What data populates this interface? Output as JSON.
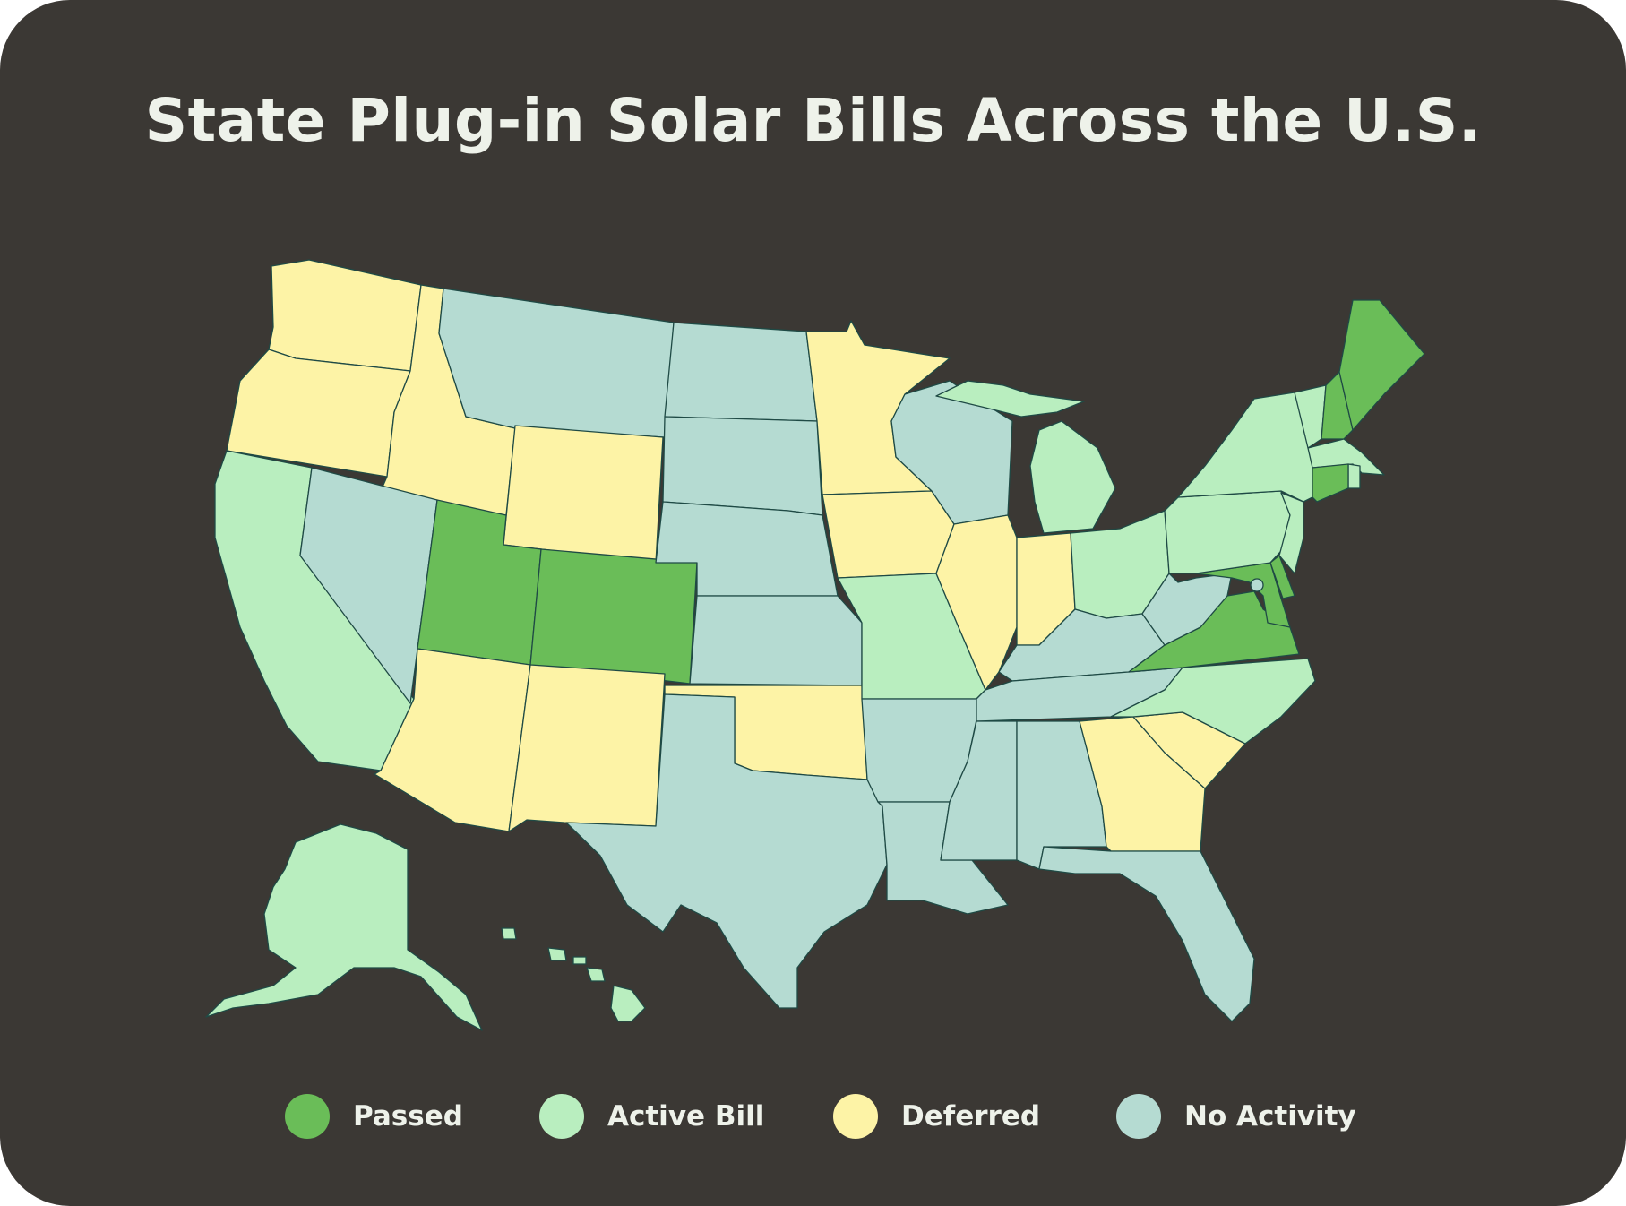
{
  "title": "State Plug-in Solar Bills Across the U.S.",
  "colors": {
    "background": "#3b3834",
    "passed": "#6abd58",
    "active": "#b9eebf",
    "deferred": "#fdf3a6",
    "none": "#b5dbd2",
    "border": "#1f4a45",
    "text": "#eef2ea"
  },
  "legend": [
    {
      "key": "passed",
      "label": "Passed",
      "color": "#6abd58"
    },
    {
      "key": "active",
      "label": "Active Bill",
      "color": "#b9eebf"
    },
    {
      "key": "deferred",
      "label": "Deferred",
      "color": "#fdf3a6"
    },
    {
      "key": "none",
      "label": "No Activity",
      "color": "#b5dbd2"
    }
  ],
  "states": {
    "passed": [
      "UT",
      "CO",
      "VA",
      "MD",
      "DE",
      "CT",
      "NH",
      "ME"
    ],
    "active": [
      "CA",
      "AK",
      "HI",
      "MO",
      "MI",
      "OH",
      "PA",
      "NY",
      "NJ",
      "NC",
      "VT",
      "MA",
      "RI"
    ],
    "deferred": [
      "WA",
      "OR",
      "ID",
      "WY",
      "AZ",
      "NM",
      "MN",
      "IA",
      "IL",
      "IN",
      "OK",
      "GA",
      "SC"
    ],
    "none": [
      "MT",
      "ND",
      "SD",
      "NE",
      "KS",
      "NV",
      "TX",
      "WI",
      "AR",
      "LA",
      "MS",
      "AL",
      "TN",
      "KY",
      "WV",
      "FL",
      "DC"
    ]
  }
}
